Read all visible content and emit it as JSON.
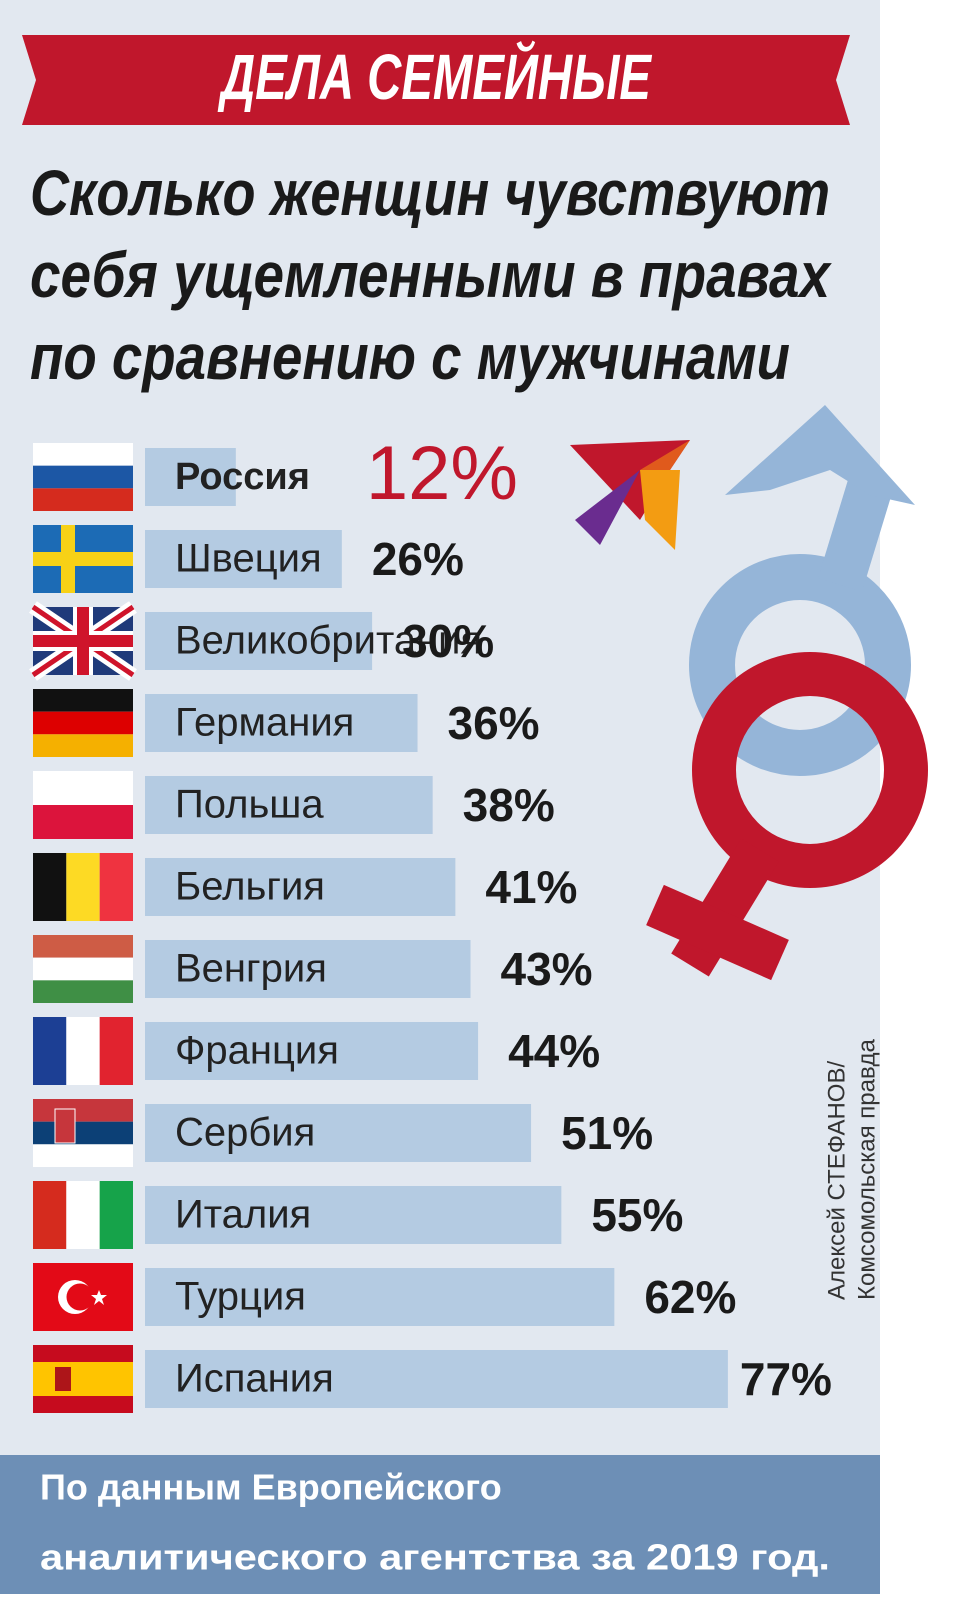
{
  "chart_data": {
    "type": "bar",
    "orientation": "horizontal",
    "title": "ДЕЛА СЕМЕЙНЫЕ",
    "subtitle": [
      "Сколько женщин чувствуют",
      "себя ущемленными в правах",
      "по сравнению с мужчинами"
    ],
    "categories": [
      "Россия",
      "Швеция",
      "Великобритания",
      "Германия",
      "Польша",
      "Бельгия",
      "Венгрия",
      "Франция",
      "Сербия",
      "Италия",
      "Турция",
      "Испания"
    ],
    "values": [
      12,
      26,
      30,
      36,
      38,
      41,
      43,
      44,
      51,
      55,
      62,
      77
    ],
    "value_labels": [
      "12%",
      "26%",
      "30%",
      "36%",
      "38%",
      "41%",
      "43%",
      "44%",
      "51%",
      "55%",
      "62%",
      "77%"
    ],
    "color": "#b4cbe2",
    "highlight_color": "#c0172c",
    "note": [
      "По данным Европейского",
      "аналитического агентства за 2019 год."
    ],
    "credit": [
      "Алексей СТЕФАНОВ/",
      "Комсомольская правда"
    ]
  }
}
